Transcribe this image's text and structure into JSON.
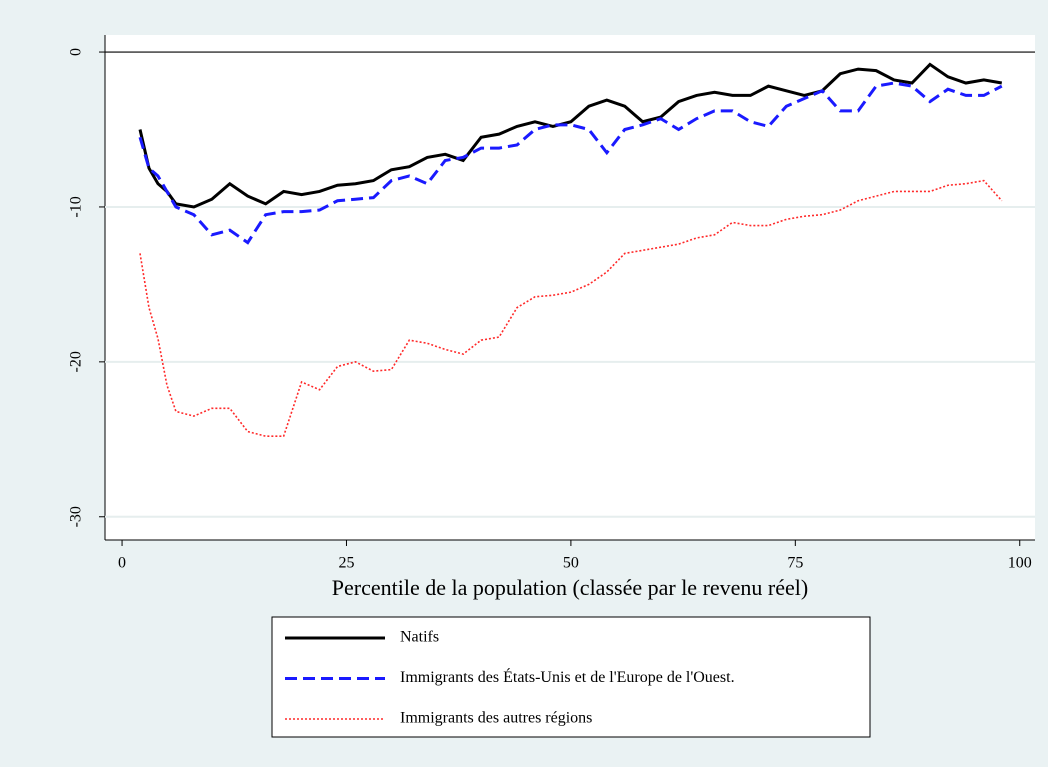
{
  "chart_data": {
    "type": "line",
    "x_label": "Percentile de la population (classée par le revenu réel)",
    "x": [
      2,
      3,
      4,
      5,
      6,
      8,
      10,
      12,
      14,
      16,
      18,
      20,
      22,
      24,
      26,
      28,
      30,
      32,
      34,
      36,
      38,
      40,
      42,
      44,
      46,
      48,
      50,
      52,
      54,
      56,
      58,
      60,
      62,
      64,
      66,
      68,
      70,
      72,
      74,
      76,
      78,
      80,
      82,
      84,
      86,
      88,
      90,
      92,
      94,
      96,
      98
    ],
    "series": [
      {
        "name": "Natifs",
        "color": "#000000",
        "dash": "solid",
        "values": [
          -5,
          -7.5,
          -8.5,
          -9,
          -9.8,
          -10,
          -9.5,
          -8.5,
          -9.3,
          -9.8,
          -9,
          -9.2,
          -9,
          -8.6,
          -8.5,
          -8.3,
          -7.6,
          -7.4,
          -6.8,
          -6.6,
          -7,
          -5.5,
          -5.3,
          -4.8,
          -4.5,
          -4.8,
          -4.5,
          -3.5,
          -3.1,
          -3.5,
          -4.5,
          -4.2,
          -3.2,
          -2.8,
          -2.6,
          -2.8,
          -2.8,
          -2.2,
          -2.5,
          -2.8,
          -2.5,
          -1.4,
          -1.1,
          -1.2,
          -1.8,
          -2,
          -0.8,
          -1.6,
          -2,
          -1.8,
          -2
        ]
      },
      {
        "name": "Immigrants des États-Unis et de l'Europe de l'Ouest.",
        "color": "#1a1aff",
        "dash": "dash",
        "values": [
          -5.5,
          -7.5,
          -8,
          -9,
          -10,
          -10.5,
          -11.8,
          -11.5,
          -12.3,
          -10.5,
          -10.3,
          -10.3,
          -10.2,
          -9.6,
          -9.5,
          -9.4,
          -8.3,
          -8,
          -8.5,
          -7,
          -6.8,
          -6.2,
          -6.2,
          -6,
          -5,
          -4.7,
          -4.7,
          -5,
          -6.5,
          -5,
          -4.7,
          -4.3,
          -5,
          -4.3,
          -3.8,
          -3.8,
          -4.5,
          -4.8,
          -3.5,
          -3,
          -2.5,
          -3.8,
          -3.8,
          -2.2,
          -2,
          -2.2,
          -3.2,
          -2.4,
          -2.8,
          -2.8,
          -2.2
        ]
      },
      {
        "name": "Immigrants des autres régions",
        "color": "#ff2a2a",
        "dash": "dot",
        "values": [
          -13,
          -16.5,
          -18.5,
          -21.5,
          -23.2,
          -23.5,
          -23,
          -23,
          -24.5,
          -24.8,
          -24.8,
          -21.3,
          -21.8,
          -20.3,
          -20,
          -20.6,
          -20.5,
          -18.6,
          -18.8,
          -19.2,
          -19.5,
          -18.6,
          -18.4,
          -16.5,
          -15.8,
          -15.7,
          -15.5,
          -15,
          -14.2,
          -13,
          -12.8,
          -12.6,
          -12.4,
          -12,
          -11.8,
          -11,
          -11.2,
          -11.2,
          -10.8,
          -10.6,
          -10.5,
          -10.2,
          -9.6,
          -9.3,
          -9,
          -9,
          -9,
          -8.6,
          -8.5,
          -8.3,
          -9.6
        ]
      }
    ],
    "xlim": [
      -1.9,
      101.7
    ],
    "ylim": [
      -31.5,
      1.1
    ],
    "xticks": [
      0,
      25,
      50,
      75,
      100
    ],
    "yticks": [
      0,
      -10,
      -20,
      -30
    ],
    "grid": true,
    "legend": "bottom"
  }
}
